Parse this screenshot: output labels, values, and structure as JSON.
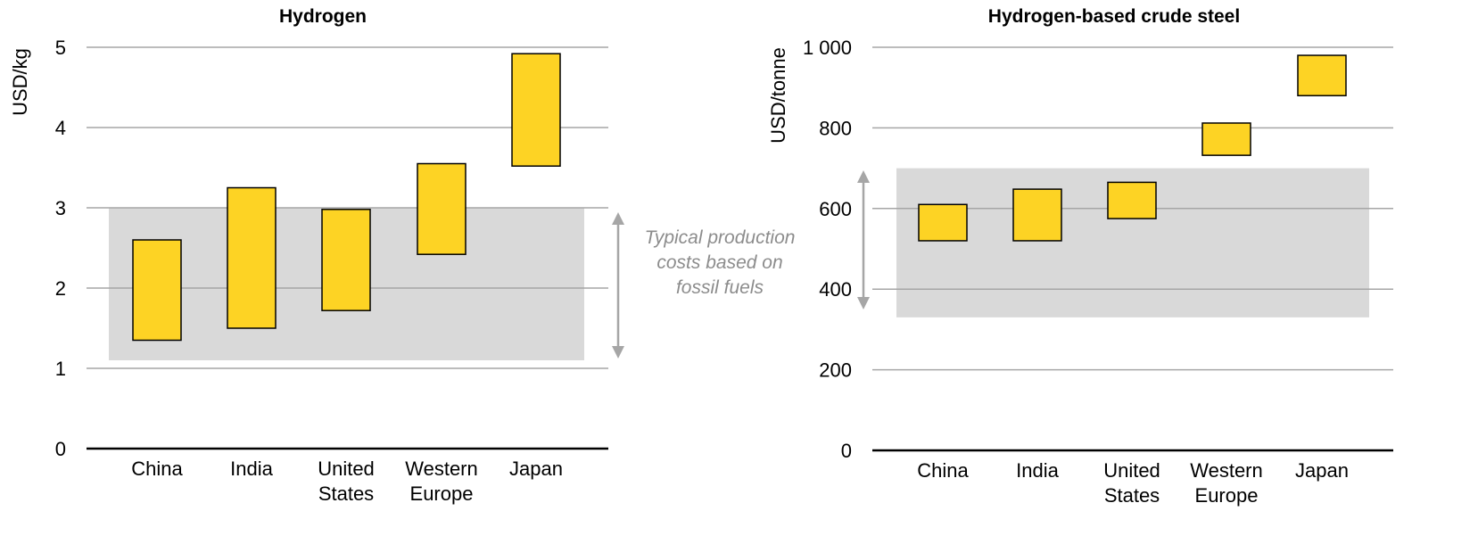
{
  "colors": {
    "bar_fill": "#FDD324",
    "bar_stroke": "#000000",
    "band_fill": "#D9D9D9",
    "grid": "#A6A6A6",
    "axis": "#000000",
    "arrow": "#A6A6A6",
    "annotation": "#8C8C8C"
  },
  "annotation": {
    "lines": [
      "Typical production",
      "costs based on",
      "fossil fuels"
    ]
  },
  "chart_data": [
    {
      "type": "bar",
      "subtype": "floating-range",
      "title": "Hydrogen",
      "ylabel": "USD/kg",
      "ylim": [
        0,
        5
      ],
      "yticks": [
        {
          "value": 0,
          "label": "0"
        },
        {
          "value": 1,
          "label": "1"
        },
        {
          "value": 2,
          "label": "2"
        },
        {
          "value": 3,
          "label": "3"
        },
        {
          "value": 4,
          "label": "4"
        },
        {
          "value": 5,
          "label": "5"
        }
      ],
      "categories": [
        [
          "China"
        ],
        [
          "India"
        ],
        [
          "United",
          "States"
        ],
        [
          "Western",
          "Europe"
        ],
        [
          "Japan"
        ]
      ],
      "ranges": [
        [
          1.35,
          2.6
        ],
        [
          1.5,
          3.25
        ],
        [
          1.72,
          2.98
        ],
        [
          2.42,
          3.55
        ],
        [
          3.52,
          4.92
        ]
      ],
      "band": [
        1.1,
        3.0
      ],
      "grid": true
    },
    {
      "type": "bar",
      "subtype": "floating-range",
      "title": "Hydrogen-based crude steel",
      "ylabel": "USD/tonne",
      "ylim": [
        0,
        1000
      ],
      "yticks": [
        {
          "value": 0,
          "label": "0"
        },
        {
          "value": 200,
          "label": "200"
        },
        {
          "value": 400,
          "label": "400"
        },
        {
          "value": 600,
          "label": "600"
        },
        {
          "value": 800,
          "label": "800"
        },
        {
          "value": 1000,
          "label": "1 000"
        }
      ],
      "categories": [
        [
          "China"
        ],
        [
          "India"
        ],
        [
          "United",
          "States"
        ],
        [
          "Western",
          "Europe"
        ],
        [
          "Japan"
        ]
      ],
      "ranges": [
        [
          520,
          610
        ],
        [
          520,
          648
        ],
        [
          575,
          665
        ],
        [
          732,
          812
        ],
        [
          880,
          980
        ]
      ],
      "band": [
        330,
        700
      ],
      "grid": true
    }
  ]
}
